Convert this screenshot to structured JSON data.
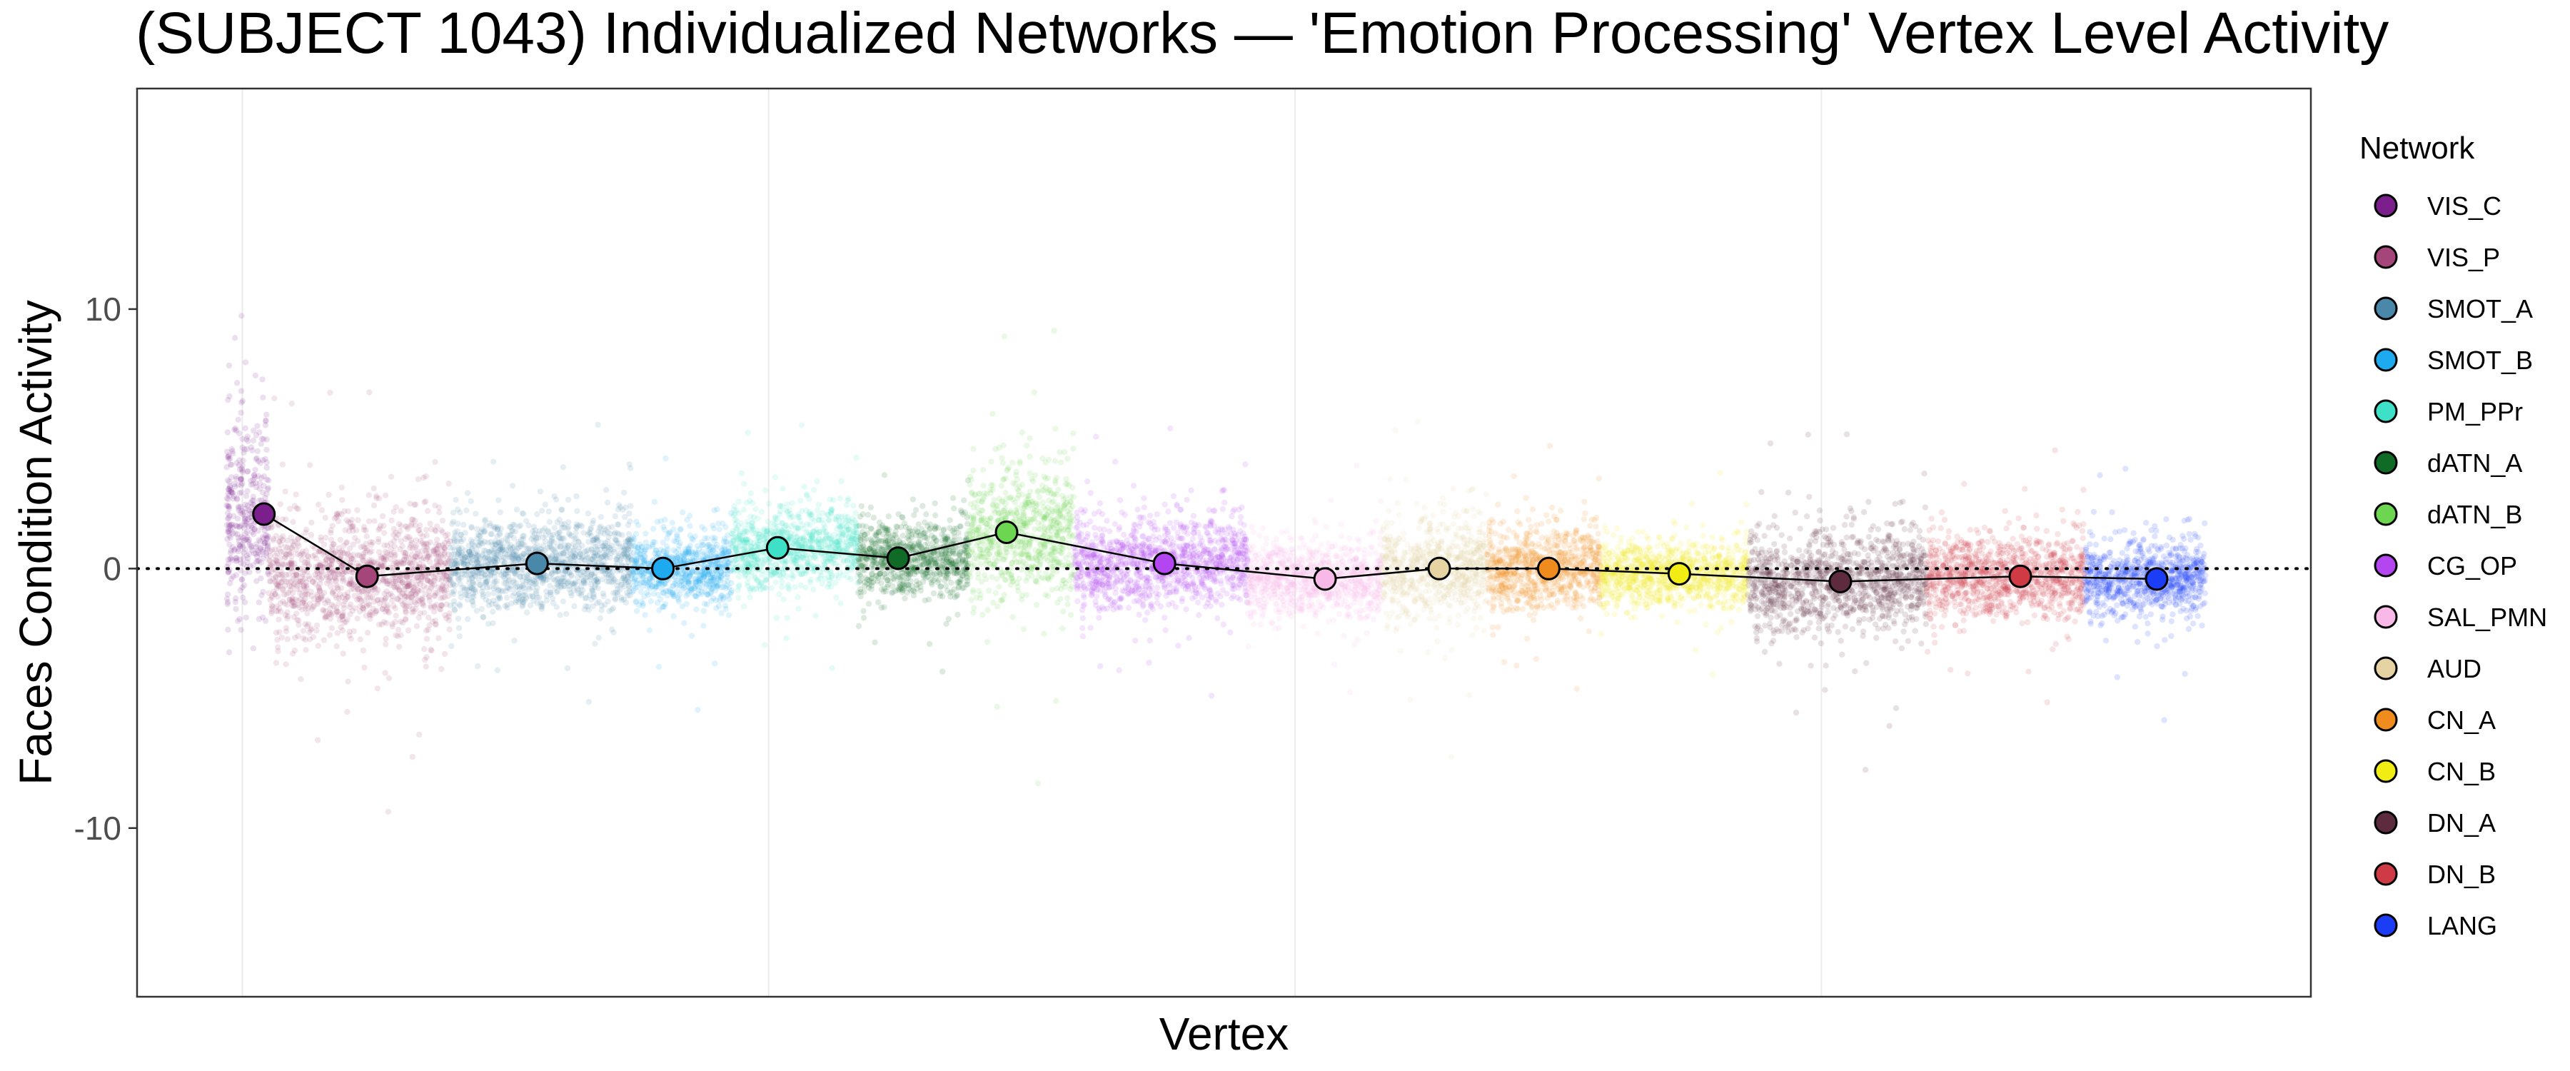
{
  "chart_data": {
    "type": "scatter",
    "title": "(SUBJECT 1043) Individualized Networks — 'Emotion Processing' Vertex Level Activity",
    "xlabel": "Vertex",
    "ylabel": "Faces Condition Activity",
    "ylim": [
      -16.5,
      18.5
    ],
    "yticks": [
      {
        "value": 10,
        "label": "10"
      },
      {
        "value": 0,
        "label": "0"
      },
      {
        "value": -10,
        "label": "-10"
      }
    ],
    "reference_line": {
      "y": 0,
      "style": "dotted"
    },
    "grid": true,
    "legend": {
      "title": "Network",
      "position": "right"
    },
    "series": [
      {
        "name": "VIS_C",
        "color": "#7B1F8C",
        "mean": 2.1,
        "spread": 2.2
      },
      {
        "name": "VIS_P",
        "color": "#A5467B",
        "mean": -0.3,
        "spread": 1.5
      },
      {
        "name": "SMOT_A",
        "color": "#4A88AA",
        "mean": 0.2,
        "spread": 1.1
      },
      {
        "name": "SMOT_B",
        "color": "#1EAAEF",
        "mean": 0.0,
        "spread": 0.9
      },
      {
        "name": "PM_PPr",
        "color": "#3FE0C8",
        "mean": 0.8,
        "spread": 1.0
      },
      {
        "name": "dATN_A",
        "color": "#0F6B26",
        "mean": 0.4,
        "spread": 0.9
      },
      {
        "name": "dATN_B",
        "color": "#6CD650",
        "mean": 1.4,
        "spread": 1.6
      },
      {
        "name": "CG_OP",
        "color": "#B446F2",
        "mean": 0.2,
        "spread": 1.1
      },
      {
        "name": "SAL_PMN",
        "color": "#F8B8E8",
        "mean": -0.4,
        "spread": 0.9
      },
      {
        "name": "AUD",
        "color": "#E6D3A3",
        "mean": 0.0,
        "spread": 1.2
      },
      {
        "name": "CN_A",
        "color": "#F08C1E",
        "mean": 0.0,
        "spread": 1.0
      },
      {
        "name": "CN_B",
        "color": "#F0EC14",
        "mean": -0.2,
        "spread": 0.8
      },
      {
        "name": "DN_A",
        "color": "#5E2B3E",
        "mean": -0.5,
        "spread": 1.2
      },
      {
        "name": "DN_B",
        "color": "#CF3B44",
        "mean": -0.3,
        "spread": 1.0
      },
      {
        "name": "LANG",
        "color": "#1B3DF6",
        "mean": -0.4,
        "spread": 0.9
      }
    ],
    "mean_points": [
      {
        "network": "VIS_C",
        "x": 0.41,
        "y": 2.1
      },
      {
        "network": "VIS_P",
        "x": 2.37,
        "y": -0.3
      },
      {
        "network": "SMOT_A",
        "x": 5.6,
        "y": 0.2
      },
      {
        "network": "SMOT_B",
        "x": 7.99,
        "y": 0.0
      },
      {
        "network": "PM_PPr",
        "x": 10.17,
        "y": 0.8
      },
      {
        "network": "dATN_A",
        "x": 12.46,
        "y": 0.4
      },
      {
        "network": "dATN_B",
        "x": 14.52,
        "y": 1.4
      },
      {
        "network": "CG_OP",
        "x": 17.52,
        "y": 0.2
      },
      {
        "network": "SAL_PMN",
        "x": 20.57,
        "y": -0.4
      },
      {
        "network": "AUD",
        "x": 22.74,
        "y": 0.0
      },
      {
        "network": "CN_A",
        "x": 24.82,
        "y": 0.0
      },
      {
        "network": "CN_B",
        "x": 27.3,
        "y": -0.2
      },
      {
        "network": "DN_A",
        "x": 30.36,
        "y": -0.5
      },
      {
        "network": "DN_B",
        "x": 33.78,
        "y": -0.3
      },
      {
        "network": "LANG",
        "x": 36.37,
        "y": -0.4
      }
    ],
    "x_segments": [
      {
        "network": "VIS_C",
        "start": -0.3,
        "end": 0.5
      },
      {
        "network": "VIS_P",
        "start": 0.5,
        "end": 3.95
      },
      {
        "network": "SMOT_A",
        "start": 3.95,
        "end": 7.4
      },
      {
        "network": "SMOT_B",
        "start": 7.4,
        "end": 9.3
      },
      {
        "network": "PM_PPr",
        "start": 9.3,
        "end": 11.7
      },
      {
        "network": "dATN_A",
        "start": 11.7,
        "end": 13.8
      },
      {
        "network": "dATN_B",
        "start": 13.8,
        "end": 15.8
      },
      {
        "network": "CG_OP",
        "start": 15.8,
        "end": 19.1
      },
      {
        "network": "SAL_PMN",
        "start": 19.1,
        "end": 21.65
      },
      {
        "network": "AUD",
        "start": 21.65,
        "end": 23.65
      },
      {
        "network": "CN_A",
        "start": 23.65,
        "end": 25.8
      },
      {
        "network": "CN_B",
        "start": 25.8,
        "end": 28.6
      },
      {
        "network": "DN_A",
        "start": 28.6,
        "end": 32.0
      },
      {
        "network": "DN_B",
        "start": 32.0,
        "end": 35.0
      },
      {
        "network": "LANG",
        "start": 35.0,
        "end": 37.3
      }
    ],
    "xlim": [
      -2.0,
      39.3
    ],
    "x_gridlines": [
      0,
      10,
      20,
      30
    ]
  }
}
